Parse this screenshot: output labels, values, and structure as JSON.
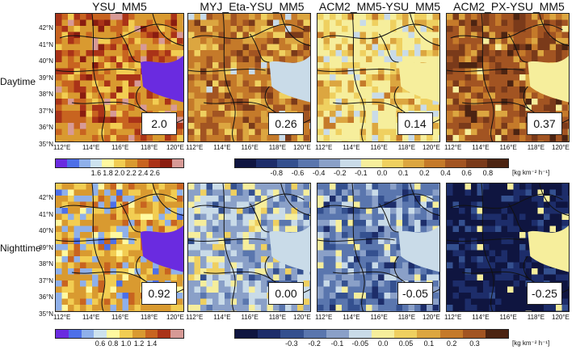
{
  "columns": [
    {
      "title": "YSU_MM5"
    },
    {
      "title": "MYJ_Eta-YSU_MM5"
    },
    {
      "title": "ACM2_MM5-YSU_MM5"
    },
    {
      "title": "ACM2_PX-YSU_MM5"
    }
  ],
  "rows": [
    {
      "label": "Daytime",
      "values": [
        "2.0",
        "0.26",
        "0.14",
        "0.37"
      ]
    },
    {
      "label": "Nighttime",
      "values": [
        "0.92",
        "0.00",
        "-0.05",
        "-0.25"
      ]
    }
  ],
  "lat_ticks": [
    "42°N",
    "41°N",
    "40°N",
    "39°N",
    "38°N",
    "37°N",
    "36°N",
    "35°N"
  ],
  "lon_ticks": [
    "112°E",
    "114°E",
    "116°E",
    "118°E",
    "120°E"
  ],
  "colorbars": {
    "day_abs": {
      "labels": [
        "1.6",
        "1.8",
        "2.0",
        "2.2",
        "2.4",
        "2.6"
      ],
      "colors": [
        "#6a2be0",
        "#4d6fe8",
        "#8fb0ea",
        "#cde2ee",
        "#fff9a0",
        "#f2cd52",
        "#d99a30",
        "#c86420",
        "#aa3318",
        "#8a1d10",
        "#d79a96"
      ]
    },
    "day_diff": {
      "labels": [
        "-0.8",
        "-0.6",
        "-0.4",
        "-0.2",
        "-0.1",
        "0.0",
        "0.1",
        "0.2",
        "0.4",
        "0.6",
        "0.8"
      ],
      "unit": "[kg km⁻² h⁻¹]",
      "colors": [
        "#0f1540",
        "#1d2d6a",
        "#34508f",
        "#5a76ae",
        "#8aa0c8",
        "#c9dbe8",
        "#f6ee9c",
        "#efd060",
        "#dca640",
        "#c57a2a",
        "#a25422",
        "#7a3a1a",
        "#4c2412"
      ]
    },
    "night_abs": {
      "labels": [
        "0.6",
        "0.8",
        "1.0",
        "1.2",
        "1.4"
      ],
      "colors": [
        "#6a2be0",
        "#4d6fe8",
        "#8fb0ea",
        "#cde2ee",
        "#fff9a0",
        "#f2cd52",
        "#d99a30",
        "#c86420",
        "#aa3318",
        "#d79a96"
      ]
    },
    "night_diff": {
      "labels": [
        "-0.3",
        "-0.2",
        "-0.1",
        "-0.05",
        "0.0",
        "0.05",
        "0.1",
        "0.2",
        "0.3"
      ],
      "unit": "[kg km⁻² h⁻¹]",
      "colors": [
        "#0f1540",
        "#1d2d6a",
        "#34508f",
        "#5a76ae",
        "#8aa0c8",
        "#c9dbe8",
        "#f6ee9c",
        "#efd060",
        "#dca640",
        "#c57a2a",
        "#a25422",
        "#4c2412"
      ]
    }
  },
  "panel_themes": {
    "r0c0": [
      "#d99a30",
      "#c86420",
      "#aa3318",
      "#f2cd52",
      "#d79a96",
      "#8a1d10"
    ],
    "r0c1": [
      "#c57a2a",
      "#a25422",
      "#dca640",
      "#efd060",
      "#7a3a1a",
      "#c9dbe8"
    ],
    "r0c2": [
      "#f6ee9c",
      "#efd060",
      "#dca640",
      "#c9dbe8",
      "#c57a2a",
      "#f6ee9c"
    ],
    "r0c3": [
      "#a25422",
      "#7a3a1a",
      "#c57a2a",
      "#dca640",
      "#4c2412",
      "#f6ee9c"
    ],
    "r1c0": [
      "#d99a30",
      "#f2cd52",
      "#8fb0ea",
      "#c86420",
      "#fff9a0",
      "#4d6fe8"
    ],
    "r1c1": [
      "#8aa0c8",
      "#c9dbe8",
      "#f6ee9c",
      "#5a76ae",
      "#efd060",
      "#34508f"
    ],
    "r1c2": [
      "#5a76ae",
      "#8aa0c8",
      "#34508f",
      "#c9dbe8",
      "#f6ee9c",
      "#1d2d6a"
    ],
    "r1c3": [
      "#0f1540",
      "#1d2d6a",
      "#0f1540",
      "#34508f",
      "#1d2d6a",
      "#f6ee9c"
    ]
  }
}
